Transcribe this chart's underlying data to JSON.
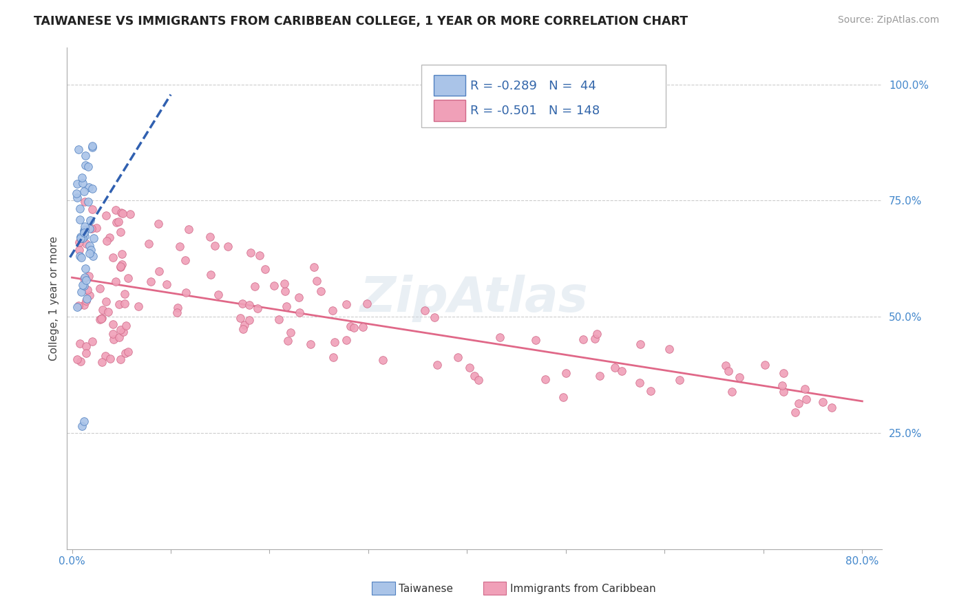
{
  "title": "TAIWANESE VS IMMIGRANTS FROM CARIBBEAN COLLEGE, 1 YEAR OR MORE CORRELATION CHART",
  "source_text": "Source: ZipAtlas.com",
  "ylabel": "College, 1 year or more",
  "xlim": [
    0.0,
    0.8
  ],
  "ylim": [
    0.0,
    1.05
  ],
  "xtick_vals": [
    0.0,
    0.1,
    0.2,
    0.3,
    0.4,
    0.5,
    0.6,
    0.7,
    0.8
  ],
  "xtick_labels_show": [
    "0.0%",
    "",
    "",
    "",
    "",
    "",
    "",
    "",
    "80.0%"
  ],
  "ytick_vals": [
    0.25,
    0.5,
    0.75,
    1.0
  ],
  "ytick_labels": [
    "25.0%",
    "50.0%",
    "75.0%",
    "100.0%"
  ],
  "taiwanese_color": "#aac4e8",
  "taiwanese_edge": "#5080c0",
  "caribbean_color": "#f0a0b8",
  "caribbean_edge": "#d06888",
  "trendline_taiwanese_color": "#3060b0",
  "trendline_caribbean_color": "#e06888",
  "legend_R1": "R = -0.289",
  "legend_N1": "N =  44",
  "legend_R2": "R = -0.501",
  "legend_N2": "N = 148",
  "legend_label1": "Taiwanese",
  "legend_label2": "Immigrants from Caribbean",
  "watermark": "ZipAtlas",
  "grid_color": "#cccccc"
}
